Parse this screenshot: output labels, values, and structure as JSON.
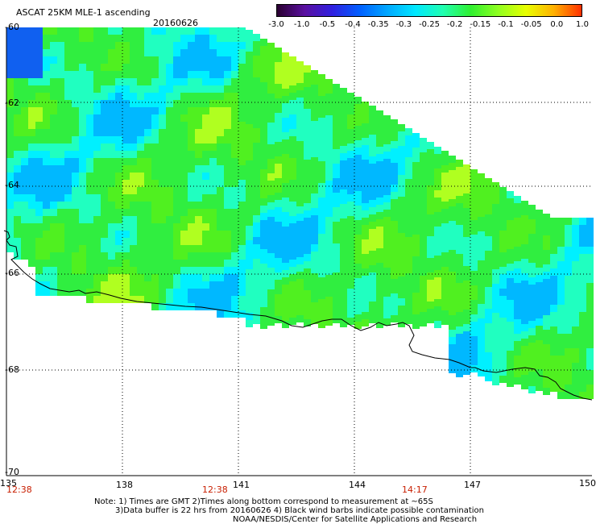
{
  "header": {
    "title": "ASCAT 25KM MLE-1 ascending",
    "date": "20160626"
  },
  "colorbar": {
    "labels": [
      "-3.0",
      "-1.0",
      "-0.5",
      "-0.4",
      "-0.35",
      "-0.3",
      "-0.25",
      "-0.2",
      "-0.15",
      "-0.1",
      "-0.05",
      "0.0",
      "1.0"
    ],
    "colors": [
      "#2a0030",
      "#5a10a0",
      "#3020e0",
      "#0060ff",
      "#00a8ff",
      "#00e8ff",
      "#20ffb0",
      "#30f030",
      "#90ff20",
      "#e8ff00",
      "#ffb000",
      "#ff3000"
    ]
  },
  "map": {
    "lon_labels": [
      "135",
      "138",
      "141",
      "144",
      "147",
      "150"
    ],
    "lat_labels": [
      "-60",
      "-62",
      "-64",
      "-66",
      "-68",
      "-70"
    ],
    "time_labels": [
      "12:38",
      "12:38",
      "14:17"
    ],
    "colors": {
      "land": "#ffffff",
      "background": "#ffffff",
      "grid": "#000000",
      "coast": "#000000",
      "time": "#c81e00"
    }
  },
  "footer": {
    "line1": "Note: 1) Times are GMT 2)Times along bottom correspond to measurement at ~65S",
    "line2": "3)Data buffer is 22 hrs from 20160626 4) Black wind barbs indicate possible contamination",
    "line3": "NOAA/NESDIS/Center for Satellite Applications and Research"
  }
}
